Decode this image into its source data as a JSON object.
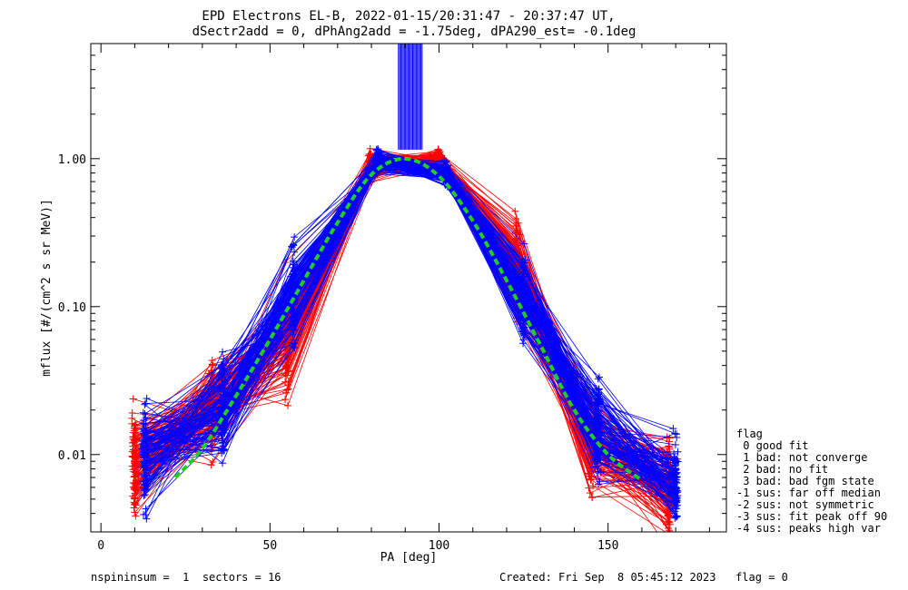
{
  "title_line1": "EPD Electrons EL-B, 2022-01-15/20:31:47 - 20:37:47 UT,",
  "title_line2": "dSectr2add = 0, dPhAng2add = -1.75deg, dPA290_est=  -0.1deg",
  "xlabel": "PA [deg]",
  "ylabel": "mflux [#/(cm^2 s sr MeV)]",
  "footer_left": "nspininsum =  1  sectors = 16",
  "footer_right": "Created: Fri Sep  8 05:45:12 2023   flag = 0",
  "legend": {
    "title": "flag",
    "items": [
      " 0 good fit",
      " 1 bad: not converge",
      " 2 bad: no fit",
      " 3 bad: bad fgm state",
      "-1 sus: far off median",
      "-2 sus: not symmetric",
      "-3 sus: fit peak off 90",
      "-4 sus: peaks high var"
    ]
  },
  "colors": {
    "series_red": "#ff0000",
    "series_blue": "#0000ff",
    "fit": "#22cc22",
    "axis": "#000000"
  },
  "chart_data": {
    "type": "line",
    "xlim": [
      -3,
      185
    ],
    "ylim": [
      0.003,
      6.0
    ],
    "yscale": "log",
    "x_ticks": [
      0,
      50,
      100,
      150
    ],
    "x_tick_labels": [
      "0",
      "50",
      "100",
      "150"
    ],
    "y_ticks": [
      0.01,
      0.1,
      1.0
    ],
    "y_tick_labels": [
      "0.01",
      "0.10",
      "1.00"
    ],
    "grid": false,
    "legend_position": "right, outside plot",
    "series": [
      {
        "color": "red",
        "x": [
          10,
          33,
          55,
          80,
          100,
          123,
          145,
          168
        ],
        "y": [
          0.009,
          0.02,
          0.06,
          0.9,
          0.95,
          0.18,
          0.012,
          0.006
        ]
      },
      {
        "color": "blue",
        "x": [
          13,
          36,
          57,
          82,
          102,
          125,
          147,
          170
        ],
        "y": [
          0.01,
          0.022,
          0.12,
          0.95,
          0.8,
          0.12,
          0.015,
          0.007
        ]
      },
      {
        "color": "green-dashed",
        "x": [
          22,
          30,
          40,
          50,
          60,
          70,
          80,
          90,
          100,
          110,
          120,
          130,
          140,
          150,
          160
        ],
        "y": [
          0.007,
          0.011,
          0.025,
          0.06,
          0.15,
          0.37,
          0.78,
          1.0,
          0.76,
          0.38,
          0.15,
          0.055,
          0.02,
          0.01,
          0.0067
        ]
      }
    ]
  }
}
